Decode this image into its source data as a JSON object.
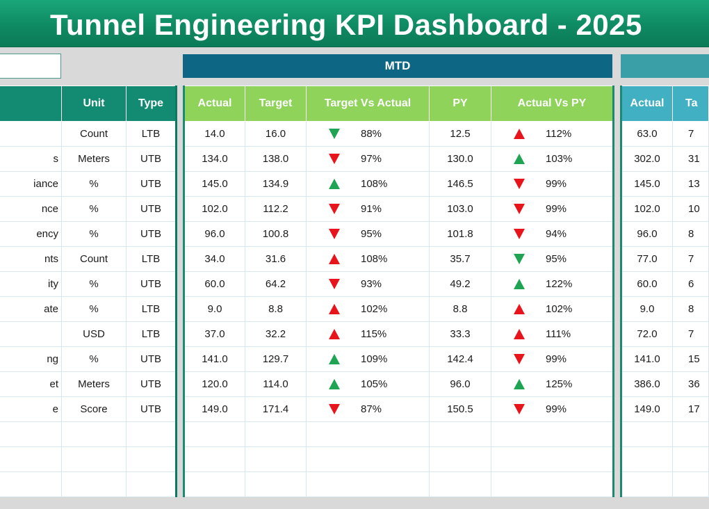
{
  "title": "Tunnel Engineering KPI Dashboard - 2025",
  "period_headers": {
    "mtd": "MTD"
  },
  "colors": {
    "up": "#1fa453",
    "down": "#e8141b"
  },
  "left_columns": {
    "kpi": "",
    "unit": "Unit",
    "type": "Type"
  },
  "mtd_columns": {
    "actual": "Actual",
    "target": "Target",
    "tva": "Target Vs Actual",
    "py": "PY",
    "avp": "Actual Vs PY"
  },
  "ytd_columns": {
    "actual": "Actual",
    "target": "Ta"
  },
  "rows": [
    {
      "kpi": "",
      "unit": "Count",
      "type": "LTB",
      "actual": "14.0",
      "target": "16.0",
      "tva_icon": "down",
      "tva_color": "up",
      "tva": "88%",
      "py": "12.5",
      "avp_icon": "up",
      "avp_color": "down",
      "avp": "112%",
      "ytd_actual": "63.0",
      "ytd_target": "7"
    },
    {
      "kpi": "s",
      "unit": "Meters",
      "type": "UTB",
      "actual": "134.0",
      "target": "138.0",
      "tva_icon": "down",
      "tva_color": "down",
      "tva": "97%",
      "py": "130.0",
      "avp_icon": "up",
      "avp_color": "up",
      "avp": "103%",
      "ytd_actual": "302.0",
      "ytd_target": "31"
    },
    {
      "kpi": "iance",
      "unit": "%",
      "type": "UTB",
      "actual": "145.0",
      "target": "134.9",
      "tva_icon": "up",
      "tva_color": "up",
      "tva": "108%",
      "py": "146.5",
      "avp_icon": "down",
      "avp_color": "down",
      "avp": "99%",
      "ytd_actual": "145.0",
      "ytd_target": "13"
    },
    {
      "kpi": "nce",
      "unit": "%",
      "type": "UTB",
      "actual": "102.0",
      "target": "112.2",
      "tva_icon": "down",
      "tva_color": "down",
      "tva": "91%",
      "py": "103.0",
      "avp_icon": "down",
      "avp_color": "down",
      "avp": "99%",
      "ytd_actual": "102.0",
      "ytd_target": "10"
    },
    {
      "kpi": "ency",
      "unit": "%",
      "type": "UTB",
      "actual": "96.0",
      "target": "100.8",
      "tva_icon": "down",
      "tva_color": "down",
      "tva": "95%",
      "py": "101.8",
      "avp_icon": "down",
      "avp_color": "down",
      "avp": "94%",
      "ytd_actual": "96.0",
      "ytd_target": "8"
    },
    {
      "kpi": "nts",
      "unit": "Count",
      "type": "LTB",
      "actual": "34.0",
      "target": "31.6",
      "tva_icon": "up",
      "tva_color": "down",
      "tva": "108%",
      "py": "35.7",
      "avp_icon": "down",
      "avp_color": "up",
      "avp": "95%",
      "ytd_actual": "77.0",
      "ytd_target": "7"
    },
    {
      "kpi": "ity",
      "unit": "%",
      "type": "UTB",
      "actual": "60.0",
      "target": "64.2",
      "tva_icon": "down",
      "tva_color": "down",
      "tva": "93%",
      "py": "49.2",
      "avp_icon": "up",
      "avp_color": "up",
      "avp": "122%",
      "ytd_actual": "60.0",
      "ytd_target": "6"
    },
    {
      "kpi": "ate",
      "unit": "%",
      "type": "LTB",
      "actual": "9.0",
      "target": "8.8",
      "tva_icon": "up",
      "tva_color": "down",
      "tva": "102%",
      "py": "8.8",
      "avp_icon": "up",
      "avp_color": "down",
      "avp": "102%",
      "ytd_actual": "9.0",
      "ytd_target": "8"
    },
    {
      "kpi": "",
      "unit": "USD",
      "type": "LTB",
      "actual": "37.0",
      "target": "32.2",
      "tva_icon": "up",
      "tva_color": "down",
      "tva": "115%",
      "py": "33.3",
      "avp_icon": "up",
      "avp_color": "down",
      "avp": "111%",
      "ytd_actual": "72.0",
      "ytd_target": "7"
    },
    {
      "kpi": "ng",
      "unit": "%",
      "type": "UTB",
      "actual": "141.0",
      "target": "129.7",
      "tva_icon": "up",
      "tva_color": "up",
      "tva": "109%",
      "py": "142.4",
      "avp_icon": "down",
      "avp_color": "down",
      "avp": "99%",
      "ytd_actual": "141.0",
      "ytd_target": "15"
    },
    {
      "kpi": "et",
      "unit": "Meters",
      "type": "UTB",
      "actual": "120.0",
      "target": "114.0",
      "tva_icon": "up",
      "tva_color": "up",
      "tva": "105%",
      "py": "96.0",
      "avp_icon": "up",
      "avp_color": "up",
      "avp": "125%",
      "ytd_actual": "386.0",
      "ytd_target": "36"
    },
    {
      "kpi": "e",
      "unit": "Score",
      "type": "UTB",
      "actual": "149.0",
      "target": "171.4",
      "tva_icon": "down",
      "tva_color": "down",
      "tva": "87%",
      "py": "150.5",
      "avp_icon": "down",
      "avp_color": "down",
      "avp": "99%",
      "ytd_actual": "149.0",
      "ytd_target": "17"
    }
  ],
  "empty_rows": 3
}
